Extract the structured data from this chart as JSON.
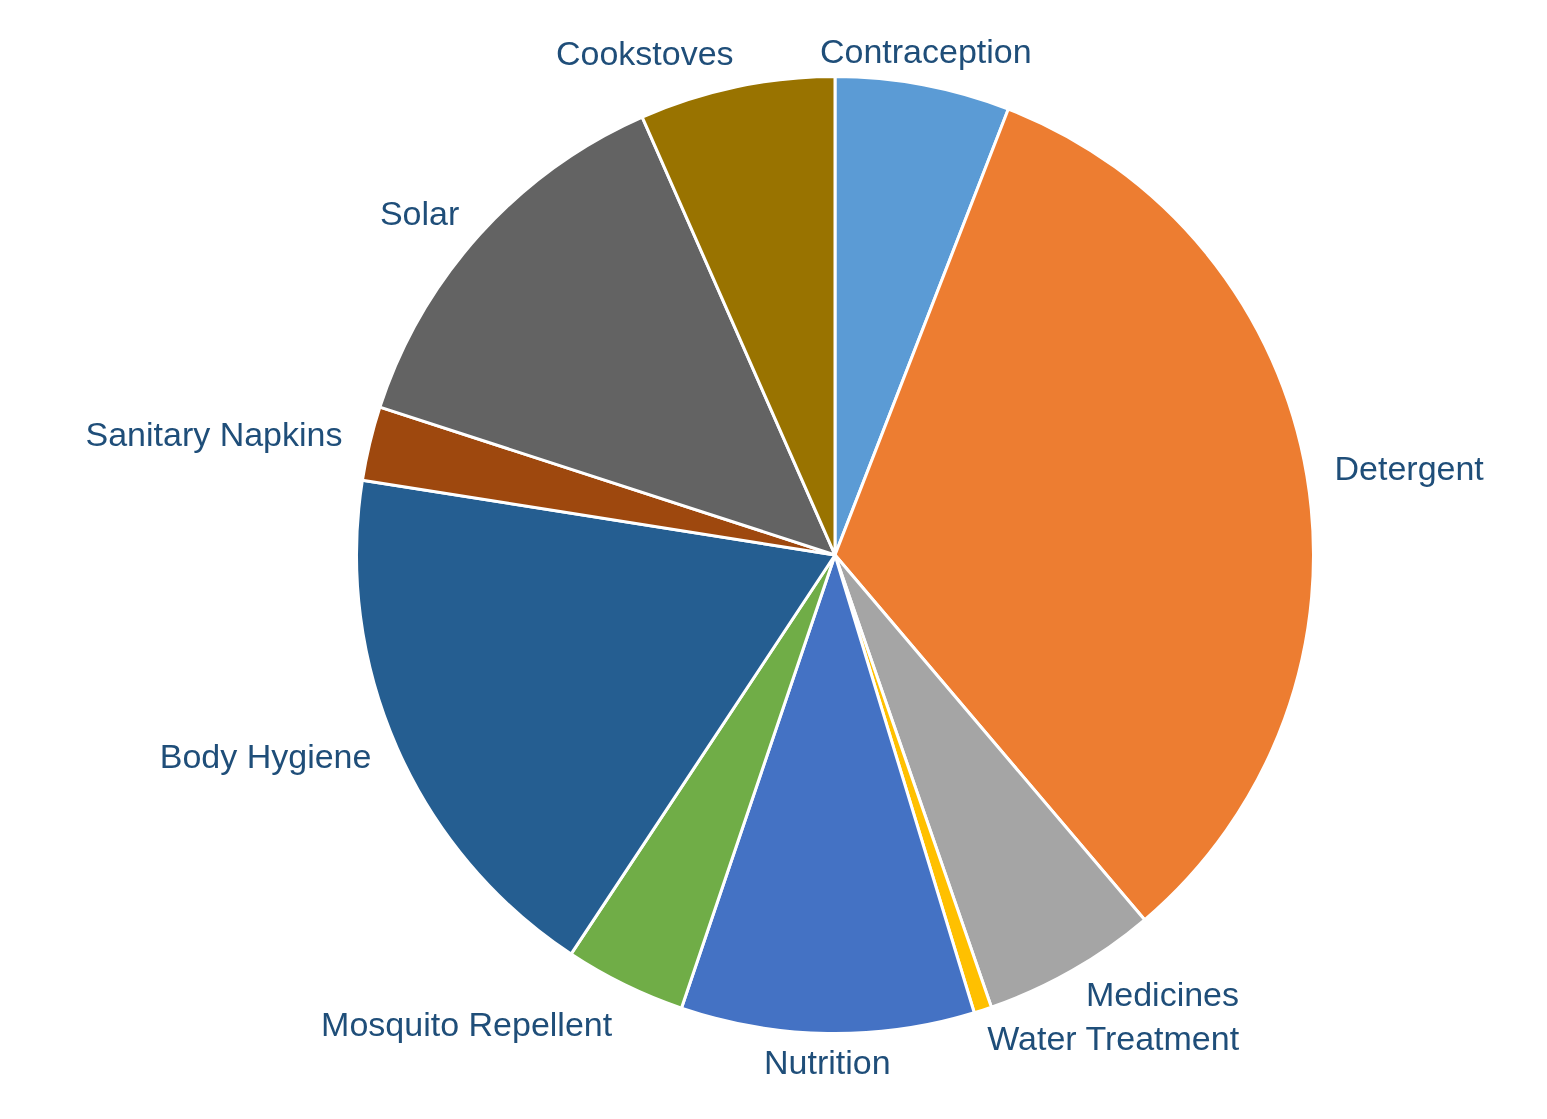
{
  "chart_data": {
    "type": "pie",
    "categories": [
      "Contraception",
      "Detergent",
      "Medicines",
      "Water Treatment",
      "Nutrition",
      "Mosquito Repellent",
      "Body Hygiene",
      "Sanitary Napkins",
      "Solar",
      "Cookstoves"
    ],
    "values": [
      5.9,
      32.9,
      5.9,
      0.6,
      9.9,
      4.1,
      18.2,
      2.5,
      13.4,
      6.6
    ],
    "colors": [
      "#5b9bd5",
      "#ed7d31",
      "#a5a5a5",
      "#ffc000",
      "#4472c4",
      "#70ad47",
      "#255e91",
      "#9e480e",
      "#636363",
      "#997300"
    ],
    "legend": false
  }
}
